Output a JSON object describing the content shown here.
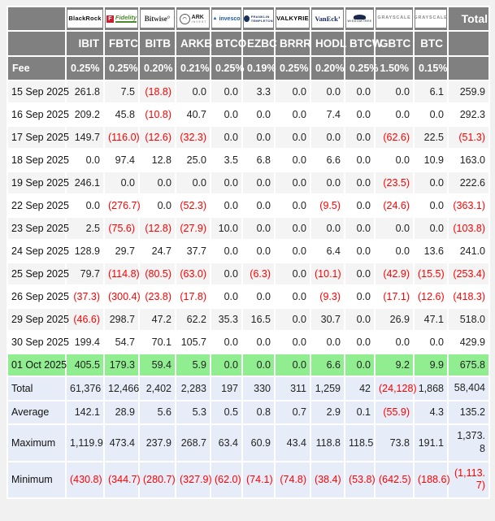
{
  "colors": {
    "header_bg": "#808080",
    "header_text": "#ffffff",
    "negative_text": "#ff0000",
    "highlight_row_bg": "#90ee90",
    "summary_bg": "#e7edf8",
    "stripe_bg": "#f4f4f4",
    "grid": "#ffffff"
  },
  "chart_data": {
    "type": "table",
    "corner_label": "",
    "fee_label": "Fee",
    "total_label": "Total",
    "providers": [
      {
        "name": "BlackRock",
        "ticker": "IBIT",
        "fee": "0.25%"
      },
      {
        "name": "Fidelity",
        "ticker": "FBTC",
        "fee": "0.25%"
      },
      {
        "name": "Bitwise",
        "ticker": "BITB",
        "fee": "0.20%"
      },
      {
        "name": "ARK Invest",
        "ticker": "ARKB",
        "fee": "0.21%"
      },
      {
        "name": "Invesco",
        "ticker": "BTCO",
        "fee": "0.25%"
      },
      {
        "name": "Franklin Templeton",
        "ticker": "EZBC",
        "fee": "0.19%"
      },
      {
        "name": "Valkyrie",
        "ticker": "BRRR",
        "fee": "0.25%"
      },
      {
        "name": "VanEck",
        "ticker": "HODL",
        "fee": "0.20%"
      },
      {
        "name": "WisdomTree",
        "ticker": "BTCW",
        "fee": "0.25%"
      },
      {
        "name": "Grayscale",
        "ticker": "GBTC",
        "fee": "1.50%"
      },
      {
        "name": "Grayscale",
        "ticker": "BTC",
        "fee": "0.15%"
      }
    ],
    "date_rows": [
      {
        "date": "15 Sep 2025",
        "values": [
          "261.8",
          "7.5",
          "(18.8)",
          "0.0",
          "0.0",
          "3.3",
          "0.0",
          "0.0",
          "0.0",
          "0.0",
          "6.1"
        ],
        "total": "259.9",
        "highlight": false
      },
      {
        "date": "16 Sep 2025",
        "values": [
          "209.2",
          "45.8",
          "(10.8)",
          "40.7",
          "0.0",
          "0.0",
          "0.0",
          "7.4",
          "0.0",
          "0.0",
          "0.0"
        ],
        "total": "292.3",
        "highlight": false
      },
      {
        "date": "17 Sep 2025",
        "values": [
          "149.7",
          "(116.0)",
          "(12.6)",
          "(32.3)",
          "0.0",
          "0.0",
          "0.0",
          "0.0",
          "0.0",
          "(62.6)",
          "22.5"
        ],
        "total": "(51.3)",
        "highlight": false
      },
      {
        "date": "18 Sep 2025",
        "values": [
          "0.0",
          "97.4",
          "12.8",
          "25.0",
          "3.5",
          "6.8",
          "0.0",
          "6.6",
          "0.0",
          "0.0",
          "10.9"
        ],
        "total": "163.0",
        "highlight": false
      },
      {
        "date": "19 Sep 2025",
        "values": [
          "246.1",
          "0.0",
          "0.0",
          "0.0",
          "0.0",
          "0.0",
          "0.0",
          "0.0",
          "0.0",
          "(23.5)",
          "0.0"
        ],
        "total": "222.6",
        "highlight": false
      },
      {
        "date": "22 Sep 2025",
        "values": [
          "0.0",
          "(276.7)",
          "0.0",
          "(52.3)",
          "0.0",
          "0.0",
          "0.0",
          "(9.5)",
          "0.0",
          "(24.6)",
          "0.0"
        ],
        "total": "(363.1)",
        "highlight": false
      },
      {
        "date": "23 Sep 2025",
        "values": [
          "2.5",
          "(75.6)",
          "(12.8)",
          "(27.9)",
          "10.0",
          "0.0",
          "0.0",
          "0.0",
          "0.0",
          "0.0",
          "0.0"
        ],
        "total": "(103.8)",
        "highlight": false
      },
      {
        "date": "24 Sep 2025",
        "values": [
          "128.9",
          "29.7",
          "24.7",
          "37.7",
          "0.0",
          "0.0",
          "0.0",
          "6.4",
          "0.0",
          "0.0",
          "13.6"
        ],
        "total": "241.0",
        "highlight": false
      },
      {
        "date": "25 Sep 2025",
        "values": [
          "79.7",
          "(114.8)",
          "(80.5)",
          "(63.0)",
          "0.0",
          "(6.3)",
          "0.0",
          "(10.1)",
          "0.0",
          "(42.9)",
          "(15.5)"
        ],
        "total": "(253.4)",
        "highlight": false
      },
      {
        "date": "26 Sep 2025",
        "values": [
          "(37.3)",
          "(300.4)",
          "(23.8)",
          "(17.8)",
          "0.0",
          "0.0",
          "0.0",
          "(9.3)",
          "0.0",
          "(17.1)",
          "(12.6)"
        ],
        "total": "(418.3)",
        "highlight": false
      },
      {
        "date": "29 Sep 2025",
        "values": [
          "(46.6)",
          "298.7",
          "47.2",
          "62.2",
          "35.3",
          "16.5",
          "0.0",
          "30.7",
          "0.0",
          "26.9",
          "47.1"
        ],
        "total": "518.0",
        "highlight": false
      },
      {
        "date": "30 Sep 2025",
        "values": [
          "199.4",
          "54.7",
          "70.1",
          "105.7",
          "0.0",
          "0.0",
          "0.0",
          "0.0",
          "0.0",
          "0.0",
          "0.0"
        ],
        "total": "429.9",
        "highlight": false
      },
      {
        "date": "01 Oct 2025",
        "values": [
          "405.5",
          "179.3",
          "59.4",
          "5.9",
          "0.0",
          "0.0",
          "0.0",
          "6.6",
          "0.0",
          "9.2",
          "9.9"
        ],
        "total": "675.8",
        "highlight": true
      }
    ],
    "summary_rows": [
      {
        "label": "Total",
        "values": [
          "61,376",
          "12,466",
          "2,402",
          "2,283",
          "197",
          "330",
          "311",
          "1,259",
          "42",
          "(24,128)",
          "1,868"
        ],
        "total": "58,404"
      },
      {
        "label": "Average",
        "values": [
          "142.1",
          "28.9",
          "5.6",
          "5.3",
          "0.5",
          "0.8",
          "0.7",
          "2.9",
          "0.1",
          "(55.9)",
          "4.3"
        ],
        "total": "135.2"
      },
      {
        "label": "Maximum",
        "values": [
          "1,119.9",
          "473.4",
          "237.9",
          "268.7",
          "63.4",
          "60.9",
          "43.4",
          "118.8",
          "118.5",
          "73.8",
          "191.1"
        ],
        "total": "1,373.8"
      },
      {
        "label": "Minimum",
        "values": [
          "(430.8)",
          "(344.7)",
          "(280.7)",
          "(327.9)",
          "(62.0)",
          "(74.1)",
          "(74.8)",
          "(38.4)",
          "(53.8)",
          "(642.5)",
          "(188.6)"
        ],
        "total": "(1,113.7)"
      }
    ]
  }
}
